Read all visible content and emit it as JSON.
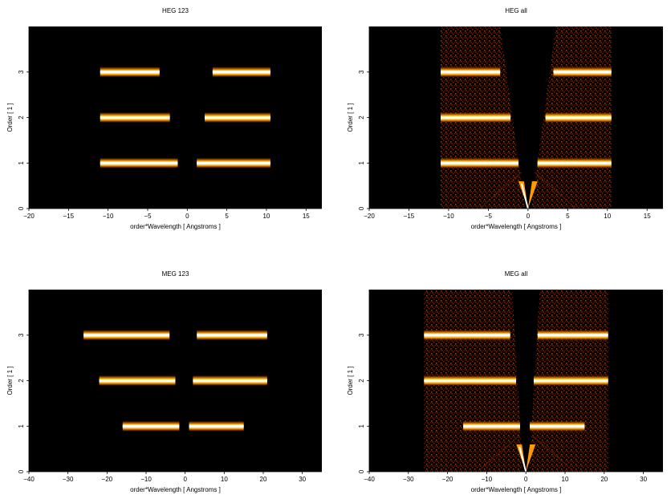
{
  "chart_data": [
    {
      "type": "heatmap",
      "title": "HEG 123",
      "xlabel": "order*Wavelength [ Angstroms ]",
      "ylabel": "Order [ 1 ]",
      "xlim": [
        -20,
        17
      ],
      "ylim": [
        0,
        4
      ],
      "xticks": [
        -20,
        -15,
        -10,
        -5,
        0,
        5,
        10,
        15
      ],
      "yticks": [
        0,
        1,
        2,
        3
      ],
      "bands": [
        {
          "order": 1,
          "segments": [
            [
              -11,
              -1.2
            ],
            [
              1.2,
              10.5
            ]
          ]
        },
        {
          "order": 2,
          "segments": [
            [
              -11,
              -2.2
            ],
            [
              2.2,
              10.5
            ]
          ]
        },
        {
          "order": 3,
          "segments": [
            [
              -11,
              -3.5
            ],
            [
              3.2,
              10.5
            ]
          ]
        }
      ],
      "features": []
    },
    {
      "type": "heatmap",
      "title": "HEG all",
      "xlabel": "order*Wavelength [ Angstroms ]",
      "ylabel": "Order [ 1 ]",
      "xlim": [
        -20,
        17
      ],
      "ylim": [
        0,
        4
      ],
      "xticks": [
        -20,
        -15,
        -10,
        -5,
        0,
        5,
        10,
        15
      ],
      "yticks": [
        0,
        1,
        2,
        3
      ],
      "bands": [
        {
          "order": 1,
          "segments": [
            [
              -11,
              -1.2
            ],
            [
              1.2,
              10.5
            ]
          ]
        },
        {
          "order": 2,
          "segments": [
            [
              -11,
              -2.2
            ],
            [
              2.2,
              10.5
            ]
          ]
        },
        {
          "order": 3,
          "segments": [
            [
              -11,
              -3.5
            ],
            [
              3.2,
              10.5
            ]
          ]
        }
      ],
      "features": [
        "background",
        "v-wedge"
      ]
    },
    {
      "type": "heatmap",
      "title": "MEG 123",
      "xlabel": "order*Wavelength [ Angstroms ]",
      "ylabel": "Order [ 1 ]",
      "xlim": [
        -40,
        35
      ],
      "ylim": [
        0,
        4
      ],
      "xticks": [
        -40,
        -30,
        -20,
        -10,
        0,
        10,
        20,
        30
      ],
      "yticks": [
        0,
        1,
        2,
        3
      ],
      "bands": [
        {
          "order": 1,
          "segments": [
            [
              -16,
              -1.5
            ],
            [
              1.0,
              15
            ]
          ]
        },
        {
          "order": 2,
          "segments": [
            [
              -22,
              -2.5
            ],
            [
              2.0,
              21
            ]
          ]
        },
        {
          "order": 3,
          "segments": [
            [
              -26,
              -4.0
            ],
            [
              3.0,
              21
            ]
          ]
        }
      ],
      "features": []
    },
    {
      "type": "heatmap",
      "title": "MEG all",
      "xlabel": "order*Wavelength [ Angstroms ]",
      "ylabel": "Order [ 1 ]",
      "xlim": [
        -40,
        35
      ],
      "ylim": [
        0,
        4
      ],
      "xticks": [
        -40,
        -30,
        -20,
        -10,
        0,
        10,
        20,
        30
      ],
      "yticks": [
        0,
        1,
        2,
        3
      ],
      "bands": [
        {
          "order": 1,
          "segments": [
            [
              -16,
              -1.5
            ],
            [
              1.0,
              15
            ]
          ]
        },
        {
          "order": 2,
          "segments": [
            [
              -26,
              -2.5
            ],
            [
              2.0,
              21
            ]
          ]
        },
        {
          "order": 3,
          "segments": [
            [
              -26,
              -4.0
            ],
            [
              3.0,
              21
            ]
          ]
        }
      ],
      "features": [
        "background",
        "v-wedge"
      ]
    }
  ]
}
